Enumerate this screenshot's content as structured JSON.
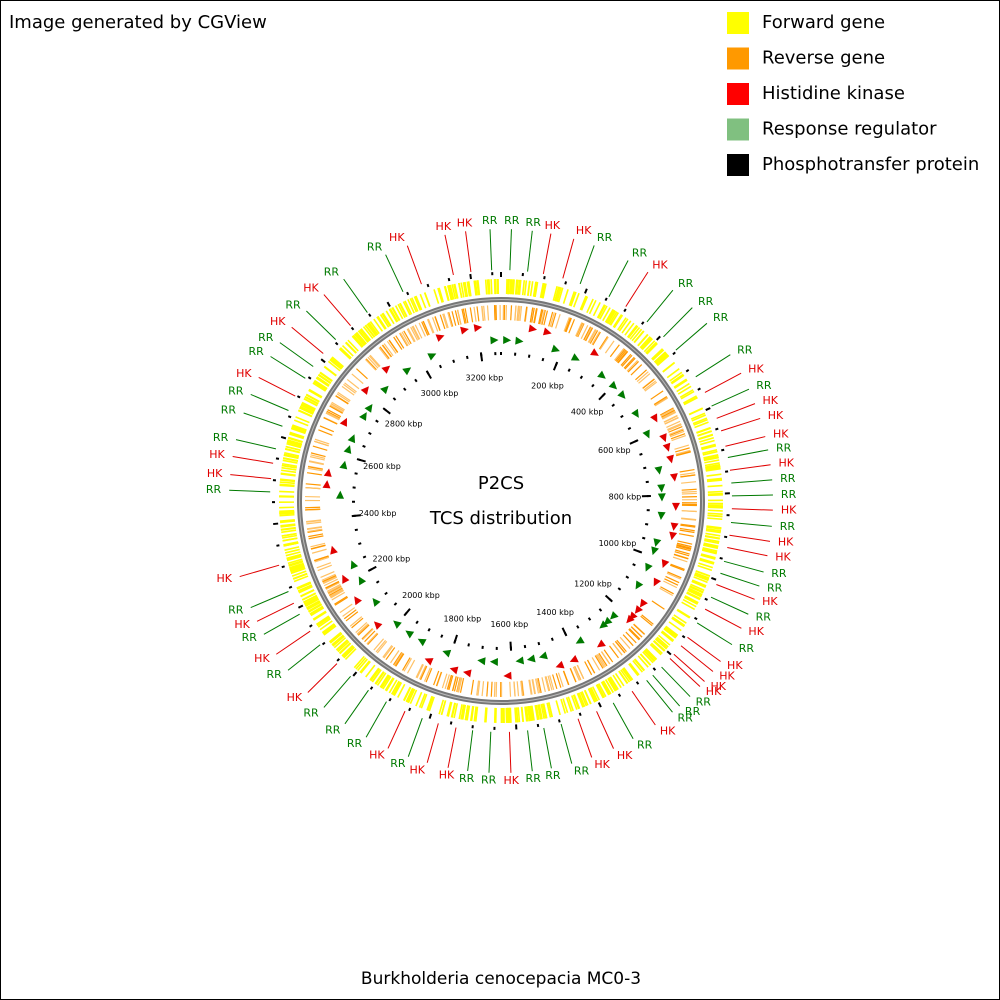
{
  "header": {
    "credit": "Image generated by CGView"
  },
  "legend": [
    {
      "label": "Forward gene",
      "color": "#ffff00"
    },
    {
      "label": "Reverse gene",
      "color": "#ff9900"
    },
    {
      "label": "Histidine kinase",
      "color": "#ff0000"
    },
    {
      "label": "Response regulator",
      "color": "#80c080"
    },
    {
      "label": "Phosphotransfer protein",
      "color": "#000000"
    }
  ],
  "center": {
    "title": "P2CS",
    "subtitle": "TCS distribution"
  },
  "map": {
    "length_kbp": 3270,
    "feature_colors": {
      "HK": "#e00000",
      "RR": "#007a00"
    },
    "ticks": [
      {
        "value": 200,
        "label": "200 kbp"
      },
      {
        "value": 400,
        "label": "400 kbp"
      },
      {
        "value": 600,
        "label": "600 kbp"
      },
      {
        "value": 800,
        "label": "800 kbp"
      },
      {
        "value": 1000,
        "label": "1000 kbp"
      },
      {
        "value": 1200,
        "label": "1200 kbp"
      },
      {
        "value": 1400,
        "label": "1400 kbp"
      },
      {
        "value": 1600,
        "label": "1600 kbp"
      },
      {
        "value": 1800,
        "label": "1800 kbp"
      },
      {
        "value": 2000,
        "label": "2000 kbp"
      },
      {
        "value": 2200,
        "label": "2200 kbp"
      },
      {
        "value": 2400,
        "label": "2400 kbp"
      },
      {
        "value": 2600,
        "label": "2600 kbp"
      },
      {
        "value": 2800,
        "label": "2800 kbp"
      },
      {
        "value": 3000,
        "label": "3000 kbp"
      },
      {
        "value": 3200,
        "label": "3200 kbp"
      }
    ],
    "features": [
      {
        "label": "RR",
        "position": 20
      },
      {
        "label": "RR",
        "position": 60
      },
      {
        "label": "HK",
        "position": 96
      },
      {
        "label": "HK",
        "position": 141
      },
      {
        "label": "RR",
        "position": 182
      },
      {
        "label": "RR",
        "position": 253
      },
      {
        "label": "HK",
        "position": 297
      },
      {
        "label": "RR",
        "position": 356
      },
      {
        "label": "RR",
        "position": 406
      },
      {
        "label": "RR",
        "position": 447
      },
      {
        "label": "RR",
        "position": 522
      },
      {
        "label": "HK",
        "position": 563
      },
      {
        "label": "RR",
        "position": 597
      },
      {
        "label": "HK",
        "position": 627
      },
      {
        "label": "HK",
        "position": 657
      },
      {
        "label": "HK",
        "position": 693
      },
      {
        "label": "RR",
        "position": 719
      },
      {
        "label": "HK",
        "position": 748
      },
      {
        "label": "RR",
        "position": 777
      },
      {
        "label": "RR",
        "position": 806
      },
      {
        "label": "HK",
        "position": 835
      },
      {
        "label": "RR",
        "position": 866
      },
      {
        "label": "HK",
        "position": 895
      },
      {
        "label": "HK",
        "position": 923
      },
      {
        "label": "RR",
        "position": 955
      },
      {
        "label": "RR",
        "position": 983
      },
      {
        "label": "HK",
        "position": 1010
      },
      {
        "label": "RR",
        "position": 1041
      },
      {
        "label": "HK",
        "position": 1071
      },
      {
        "label": "RR",
        "position": 1107
      },
      {
        "label": "HK",
        "position": 1146
      },
      {
        "label": "HK",
        "position": 1170
      },
      {
        "label": "HK",
        "position": 1195
      },
      {
        "label": "HK",
        "position": 1208
      },
      {
        "label": "RR",
        "position": 1235
      },
      {
        "label": "RR",
        "position": 1262
      },
      {
        "label": "RR",
        "position": 1280
      },
      {
        "label": "HK",
        "position": 1321
      },
      {
        "label": "RR",
        "position": 1371
      },
      {
        "label": "HK",
        "position": 1413
      },
      {
        "label": "HK",
        "position": 1458
      },
      {
        "label": "RR",
        "position": 1498
      },
      {
        "label": "RR",
        "position": 1538
      },
      {
        "label": "RR",
        "position": 1575
      },
      {
        "label": "HK",
        "position": 1616
      },
      {
        "label": "RR",
        "position": 1658
      },
      {
        "label": "RR",
        "position": 1699
      },
      {
        "label": "HK",
        "position": 1737
      },
      {
        "label": "HK",
        "position": 1778
      },
      {
        "label": "RR",
        "position": 1816
      },
      {
        "label": "HK",
        "position": 1858
      },
      {
        "label": "RR",
        "position": 1905
      },
      {
        "label": "RR",
        "position": 1953
      },
      {
        "label": "RR",
        "position": 2004
      },
      {
        "label": "HK",
        "position": 2046
      },
      {
        "label": "RR",
        "position": 2103
      },
      {
        "label": "HK",
        "position": 2141
      },
      {
        "label": "RR",
        "position": 2186
      },
      {
        "label": "HK",
        "position": 2214
      },
      {
        "label": "RR",
        "position": 2243
      },
      {
        "label": "HK",
        "position": 2306
      },
      {
        "label": "RR",
        "position": 2473
      },
      {
        "label": "HK",
        "position": 2503
      },
      {
        "label": "HK",
        "position": 2538
      },
      {
        "label": "RR",
        "position": 2571
      },
      {
        "label": "RR",
        "position": 2624
      },
      {
        "label": "RR",
        "position": 2662
      },
      {
        "label": "HK",
        "position": 2698
      },
      {
        "label": "RR",
        "position": 2744
      },
      {
        "label": "RR",
        "position": 2776
      },
      {
        "label": "HK",
        "position": 2813
      },
      {
        "label": "RR",
        "position": 2855
      },
      {
        "label": "HK",
        "position": 2901
      },
      {
        "label": "RR",
        "position": 2949
      },
      {
        "label": "RR",
        "position": 3042
      },
      {
        "label": "HK",
        "position": 3087
      },
      {
        "label": "HK",
        "position": 3162
      },
      {
        "label": "HK",
        "position": 3202
      },
      {
        "label": "RR",
        "position": 3249
      }
    ]
  },
  "footer": {
    "organism": "Burkholderia cenocepacia MC0-3"
  }
}
